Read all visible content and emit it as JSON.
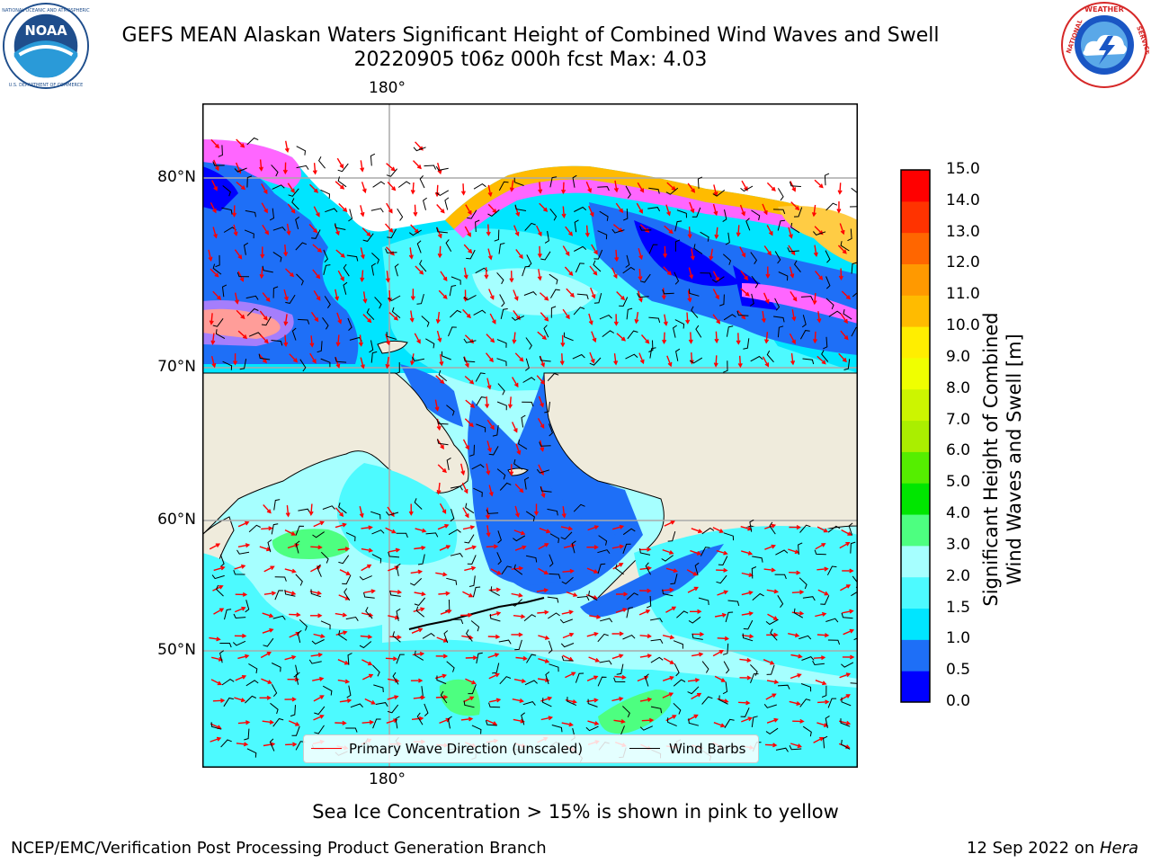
{
  "title": {
    "line1": "GEFS MEAN Alaskan Waters Significant Height of Combined Wind Waves and Swell",
    "line2": "20220905 t06z 000h fcst   Max: 4.03"
  },
  "logos": {
    "noaa": {
      "text": "NOAA",
      "ring_text": "NATIONAL OCEANIC AND ATMOSPHERIC ADMINISTRATION · U.S. DEPARTMENT OF COMMERCE",
      "color": "#1f4e8c"
    },
    "nws": {
      "ring_text": "NATIONAL WEATHER SERVICE",
      "color": "#d62828"
    }
  },
  "map": {
    "lon_label_top": "180°",
    "lon_label_bottom": "180°",
    "lat_labels": [
      "80°N",
      "70°N",
      "60°N",
      "50°N"
    ],
    "land_color": "#efebdc",
    "ice_note": "Sea Ice Concentration > 15% is shown in pink to yellow"
  },
  "legend": {
    "wave_direction": "Primary Wave Direction (unscaled)",
    "wind_barbs": "Wind Barbs",
    "wave_color": "#ff0000",
    "barb_color": "#000000"
  },
  "colorbar": {
    "label_line1": "Significant Height of Combined",
    "label_line2": "Wind Waves and Swell [m]",
    "ticks": [
      "0.0",
      "0.5",
      "1.0",
      "1.5",
      "2.0",
      "3.0",
      "4.0",
      "5.0",
      "6.0",
      "7.0",
      "8.0",
      "9.0",
      "10.0",
      "11.0",
      "12.0",
      "13.0",
      "14.0",
      "15.0"
    ],
    "colors": [
      "#0000ff",
      "#1e6ff7",
      "#00e5ff",
      "#4dfaff",
      "#a6ffff",
      "#4dff80",
      "#00e600",
      "#55ee00",
      "#aaee00",
      "#ccf500",
      "#f0ff00",
      "#ffee00",
      "#ffbb00",
      "#ff9900",
      "#ff6600",
      "#ff3300",
      "#ff0000"
    ]
  },
  "footer": {
    "left": "NCEP/EMC/Verification Post Processing Product Generation Branch",
    "right_date": "12 Sep 2022 on ",
    "right_host": "Hera"
  }
}
